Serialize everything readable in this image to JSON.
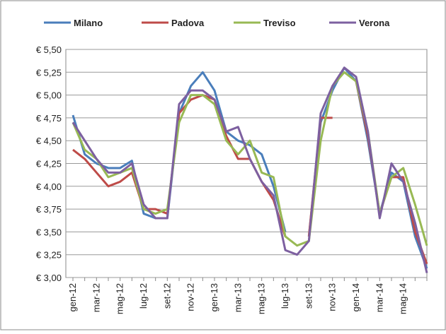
{
  "chart_data": {
    "type": "line",
    "categories": [
      "gen-12",
      null,
      "mar-12",
      null,
      "mag-12",
      null,
      "lug-12",
      null,
      "set-12",
      null,
      "nov-12",
      null,
      "gen-13",
      null,
      "mar-13",
      null,
      "mag-13",
      null,
      "lug-13",
      null,
      "set-13",
      null,
      "nov-13",
      null,
      "gen-14",
      null,
      "mar-14",
      null,
      "mag-14",
      null,
      null
    ],
    "series": [
      {
        "name": "Milano",
        "color": "#4a7ebb",
        "values": [
          4.78,
          4.35,
          4.25,
          4.2,
          4.2,
          4.28,
          3.7,
          3.65,
          3.65,
          4.8,
          5.1,
          5.25,
          5.05,
          4.6,
          4.5,
          4.45,
          4.35,
          4.0,
          3.5,
          null,
          3.45,
          4.7,
          5.05,
          5.3,
          5.15,
          4.5,
          3.7,
          4.15,
          4.05,
          3.45,
          3.1
        ]
      },
      {
        "name": "Padova",
        "color": "#be4b48",
        "values": [
          4.4,
          4.3,
          4.15,
          4.0,
          4.05,
          4.15,
          3.75,
          3.75,
          3.7,
          4.8,
          4.95,
          5.0,
          4.95,
          4.55,
          4.3,
          4.3,
          4.05,
          3.85,
          3.45,
          null,
          3.45,
          4.75,
          4.75,
          null,
          5.15,
          4.55,
          3.7,
          4.1,
          4.1,
          3.5,
          3.15
        ]
      },
      {
        "name": "Treviso",
        "color": "#98b954",
        "values": [
          4.7,
          4.4,
          4.3,
          4.1,
          4.15,
          4.2,
          3.75,
          3.7,
          3.75,
          4.7,
          5.0,
          5.0,
          4.9,
          4.5,
          4.35,
          4.5,
          4.15,
          4.1,
          3.45,
          3.35,
          3.4,
          4.5,
          5.1,
          5.25,
          5.15,
          4.6,
          3.7,
          4.1,
          4.2,
          3.8,
          3.35
        ]
      },
      {
        "name": "Verona",
        "color": "#7d60a0",
        "values": [
          4.7,
          4.5,
          4.3,
          4.15,
          4.15,
          4.25,
          3.8,
          3.65,
          3.65,
          4.9,
          5.05,
          5.05,
          4.95,
          4.6,
          4.65,
          4.3,
          4.05,
          3.9,
          3.3,
          3.25,
          3.4,
          4.8,
          5.1,
          5.3,
          5.2,
          4.6,
          3.65,
          4.25,
          4.05,
          3.6,
          3.05
        ]
      }
    ],
    "ylim": [
      3,
      5.5
    ],
    "yticks": [
      {
        "value": 3,
        "label": "€ 3,00"
      },
      {
        "value": 3.25,
        "label": "€ 3,25"
      },
      {
        "value": 3.5,
        "label": "€ 3,50"
      },
      {
        "value": 3.75,
        "label": "€ 3,75"
      },
      {
        "value": 4,
        "label": "€ 4,00"
      },
      {
        "value": 4.25,
        "label": "€ 4,25"
      },
      {
        "value": 4.5,
        "label": "€ 4,50"
      },
      {
        "value": 4.75,
        "label": "€ 4,75"
      },
      {
        "value": 5,
        "label": "€ 5,00"
      },
      {
        "value": 5.25,
        "label": "€ 5,25"
      },
      {
        "value": 5.5,
        "label": "€ 5,50"
      }
    ],
    "grid": true,
    "legend": "top"
  }
}
